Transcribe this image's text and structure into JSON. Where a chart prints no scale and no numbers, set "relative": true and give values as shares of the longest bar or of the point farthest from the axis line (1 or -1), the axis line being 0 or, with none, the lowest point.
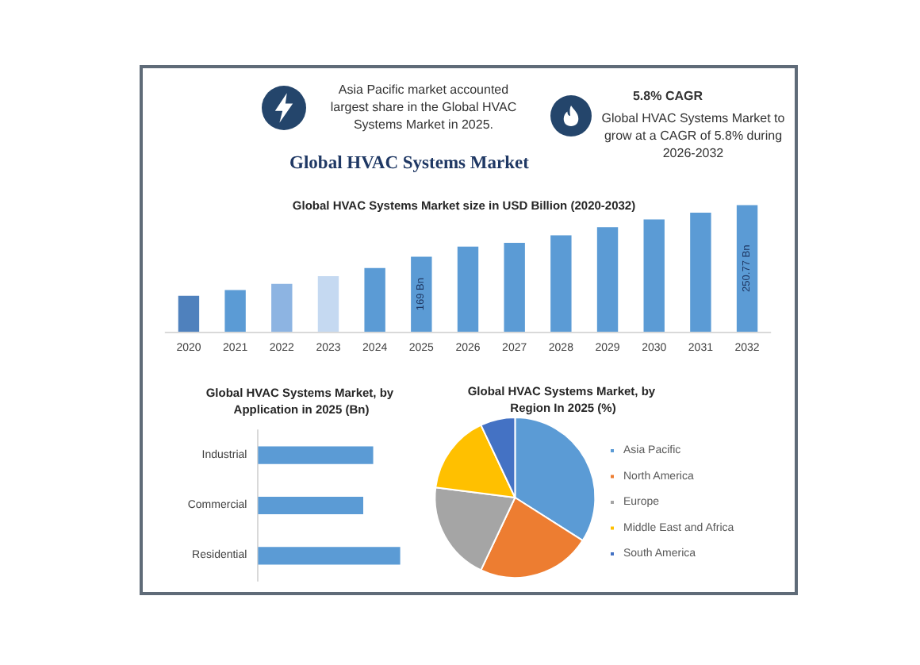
{
  "chart_data": [
    {
      "type": "other",
      "title": "Global HVAC Systems Market",
      "annotations": [
        "Asia Pacific market accounted largest share in the Global HVAC Systems Market in 2025.",
        "5.8% CAGR",
        "Global HVAC Systems Market to grow at a CAGR of 5.8% during 2026-2032"
      ]
    },
    {
      "type": "bar",
      "title": "Global HVAC Systems Market size in USD Billion (2020-2032)",
      "categories": [
        "2020",
        "2021",
        "2022",
        "2023",
        "2024",
        "2025",
        "2026",
        "2027",
        "2028",
        "2029",
        "2030",
        "2031",
        "2032"
      ],
      "values": [
        107,
        116,
        126,
        138,
        151,
        169,
        185,
        191,
        203,
        216,
        228,
        239,
        250.77
      ],
      "colors": [
        "#4f81bd",
        "#5b9bd5",
        "#8db4e2",
        "#c5d9f1",
        "#5b9bd5",
        "#5b9bd5",
        "#5b9bd5",
        "#5b9bd5",
        "#5b9bd5",
        "#5b9bd5",
        "#5b9bd5",
        "#5b9bd5",
        "#5b9bd5"
      ],
      "value_labels": [
        null,
        null,
        null,
        null,
        null,
        "169 Bn",
        null,
        null,
        null,
        null,
        null,
        null,
        "250.77 Bn"
      ],
      "ylim": [
        50,
        260
      ],
      "tick_labels": "x"
    },
    {
      "type": "bar",
      "title": "Global HVAC Systems Market, by Application in 2025 (Bn)",
      "orientation": "horizontal",
      "relative": true,
      "categories": [
        "Industrial",
        "Commercial",
        "Residential"
      ],
      "values": [
        0.81,
        0.74,
        1
      ],
      "color": "#5b9bd5"
    },
    {
      "type": "pie",
      "title": "Global HVAC Systems Market, by Region In 2025 (%)",
      "categories": [
        "Asia Pacific",
        "North America",
        "Europe",
        "Middle East and Africa",
        "South America"
      ],
      "values": [
        34,
        23,
        20,
        16,
        7
      ],
      "colors": [
        "#5b9bd5",
        "#ed7d31",
        "#a5a5a5",
        "#ffc000",
        "#4472c4"
      ],
      "legend": "right"
    }
  ]
}
